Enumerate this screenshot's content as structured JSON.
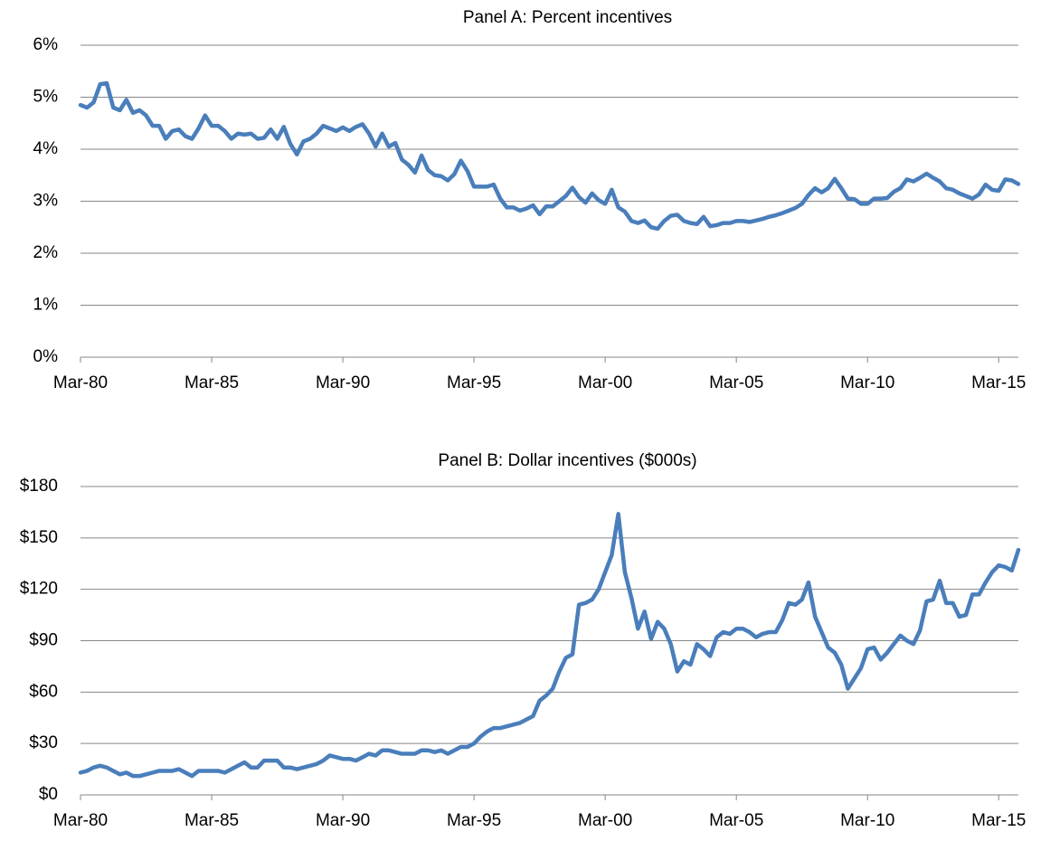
{
  "chart_data": [
    {
      "type": "line",
      "title": "Panel A: Percent incentives",
      "color": "#4a7ebb",
      "grid": true,
      "categories": [
        "Mar-80",
        null,
        null,
        null,
        null,
        null,
        null,
        null,
        null,
        null,
        null,
        null,
        null,
        null,
        null,
        null,
        null,
        null,
        null,
        null,
        "Mar-85",
        null,
        null,
        null,
        null,
        null,
        null,
        null,
        null,
        null,
        null,
        null,
        null,
        null,
        null,
        null,
        null,
        null,
        null,
        null,
        "Mar-90",
        null,
        null,
        null,
        null,
        null,
        null,
        null,
        null,
        null,
        null,
        null,
        null,
        null,
        null,
        null,
        null,
        null,
        null,
        null,
        "Mar-95",
        null,
        null,
        null,
        null,
        null,
        null,
        null,
        null,
        null,
        null,
        null,
        null,
        null,
        null,
        null,
        null,
        null,
        null,
        null,
        "Mar-00",
        null,
        null,
        null,
        null,
        null,
        null,
        null,
        null,
        null,
        null,
        null,
        null,
        null,
        null,
        null,
        null,
        null,
        null,
        null,
        "Mar-05",
        null,
        null,
        null,
        null,
        null,
        null,
        null,
        null,
        null,
        null,
        null,
        null,
        null,
        null,
        null,
        null,
        null,
        null,
        null,
        "Mar-10",
        null,
        null,
        null,
        null,
        null,
        null,
        null,
        null,
        null,
        null,
        null,
        null,
        null,
        null,
        null,
        null,
        null,
        null,
        null,
        "Mar-15",
        null,
        null,
        null
      ],
      "values": [
        4.85,
        4.8,
        4.9,
        5.25,
        5.27,
        4.8,
        4.75,
        4.95,
        4.7,
        4.75,
        4.65,
        4.45,
        4.45,
        4.2,
        4.35,
        4.38,
        4.25,
        4.2,
        4.4,
        4.65,
        4.45,
        4.45,
        4.35,
        4.2,
        4.3,
        4.28,
        4.3,
        4.2,
        4.22,
        4.38,
        4.2,
        4.43,
        4.1,
        3.9,
        4.15,
        4.2,
        4.3,
        4.45,
        4.4,
        4.35,
        4.42,
        4.35,
        4.43,
        4.48,
        4.3,
        4.05,
        4.3,
        4.05,
        4.12,
        3.8,
        3.7,
        3.55,
        3.88,
        3.6,
        3.5,
        3.48,
        3.4,
        3.52,
        3.78,
        3.58,
        3.28,
        3.28,
        3.28,
        3.32,
        3.05,
        2.88,
        2.88,
        2.82,
        2.86,
        2.92,
        2.75,
        2.9,
        2.9,
        3.0,
        3.1,
        3.26,
        3.08,
        2.97,
        3.15,
        3.02,
        2.95,
        3.22,
        2.88,
        2.8,
        2.62,
        2.58,
        2.63,
        2.5,
        2.47,
        2.62,
        2.72,
        2.74,
        2.62,
        2.58,
        2.56,
        2.7,
        2.52,
        2.54,
        2.58,
        2.58,
        2.62,
        2.62,
        2.6,
        2.63,
        2.66,
        2.7,
        2.73,
        2.77,
        2.82,
        2.87,
        2.95,
        3.12,
        3.25,
        3.17,
        3.25,
        3.43,
        3.25,
        3.05,
        3.04,
        2.95,
        2.95,
        3.05,
        3.05,
        3.06,
        3.18,
        3.25,
        3.42,
        3.38,
        3.45,
        3.53,
        3.45,
        3.38,
        3.25,
        3.22,
        3.15,
        3.1,
        3.05,
        3.13,
        3.32,
        3.22,
        3.2,
        3.42,
        3.4,
        3.33
      ],
      "ylim": [
        0,
        6
      ],
      "yticks": [
        {
          "value": 0,
          "label": "0%"
        },
        {
          "value": 1,
          "label": "1%"
        },
        {
          "value": 2,
          "label": "2%"
        },
        {
          "value": 3,
          "label": "3%"
        },
        {
          "value": 4,
          "label": "4%"
        },
        {
          "value": 5,
          "label": "5%"
        },
        {
          "value": 6,
          "label": "6%"
        }
      ]
    },
    {
      "type": "line",
      "title": "Panel B: Dollar incentives ($000s)",
      "color": "#4a7ebb",
      "grid": true,
      "categories": [
        "Mar-80",
        null,
        null,
        null,
        null,
        null,
        null,
        null,
        null,
        null,
        null,
        null,
        null,
        null,
        null,
        null,
        null,
        null,
        null,
        null,
        "Mar-85",
        null,
        null,
        null,
        null,
        null,
        null,
        null,
        null,
        null,
        null,
        null,
        null,
        null,
        null,
        null,
        null,
        null,
        null,
        null,
        "Mar-90",
        null,
        null,
        null,
        null,
        null,
        null,
        null,
        null,
        null,
        null,
        null,
        null,
        null,
        null,
        null,
        null,
        null,
        null,
        null,
        "Mar-95",
        null,
        null,
        null,
        null,
        null,
        null,
        null,
        null,
        null,
        null,
        null,
        null,
        null,
        null,
        null,
        null,
        null,
        null,
        null,
        "Mar-00",
        null,
        null,
        null,
        null,
        null,
        null,
        null,
        null,
        null,
        null,
        null,
        null,
        null,
        null,
        null,
        null,
        null,
        null,
        null,
        "Mar-05",
        null,
        null,
        null,
        null,
        null,
        null,
        null,
        null,
        null,
        null,
        null,
        null,
        null,
        null,
        null,
        null,
        null,
        null,
        null,
        "Mar-10",
        null,
        null,
        null,
        null,
        null,
        null,
        null,
        null,
        null,
        null,
        null,
        null,
        null,
        null,
        null,
        null,
        null,
        null,
        null,
        "Mar-15",
        null,
        null,
        null
      ],
      "values": [
        13,
        14,
        16,
        17,
        16,
        14,
        12,
        13,
        11,
        11,
        12,
        13,
        14,
        14,
        14,
        15,
        13,
        11,
        14,
        14,
        14,
        14,
        13,
        15,
        17,
        19,
        16,
        16,
        20,
        20,
        20,
        16,
        16,
        15,
        16,
        17,
        18,
        20,
        23,
        22,
        21,
        21,
        20,
        22,
        24,
        23,
        26,
        26,
        25,
        24,
        24,
        24,
        26,
        26,
        25,
        26,
        24,
        26,
        28,
        28,
        30,
        34,
        37,
        39,
        39,
        40,
        41,
        42,
        44,
        46,
        55,
        58,
        62,
        72,
        80,
        82,
        111,
        112,
        114,
        120,
        130,
        140,
        164,
        130,
        115,
        97,
        107,
        91,
        101,
        97,
        88,
        72,
        78,
        76,
        88,
        85,
        81,
        92,
        95,
        94,
        97,
        97,
        95,
        92,
        94,
        95,
        95,
        102,
        112,
        111,
        114,
        124,
        104,
        95,
        86,
        83,
        76,
        62,
        68,
        74,
        85,
        86,
        79,
        83,
        88,
        93,
        90,
        88,
        96,
        113,
        114,
        125,
        112,
        112,
        104,
        105,
        117,
        117,
        124,
        130,
        134,
        133,
        131,
        143
      ],
      "ylim": [
        0,
        180
      ],
      "yticks": [
        {
          "value": 0,
          "label": "$0"
        },
        {
          "value": 30,
          "label": "$30"
        },
        {
          "value": 60,
          "label": "$60"
        },
        {
          "value": 90,
          "label": "$90"
        },
        {
          "value": 120,
          "label": "$120"
        },
        {
          "value": 150,
          "label": "$150"
        },
        {
          "value": 180,
          "label": "$180"
        }
      ]
    }
  ]
}
